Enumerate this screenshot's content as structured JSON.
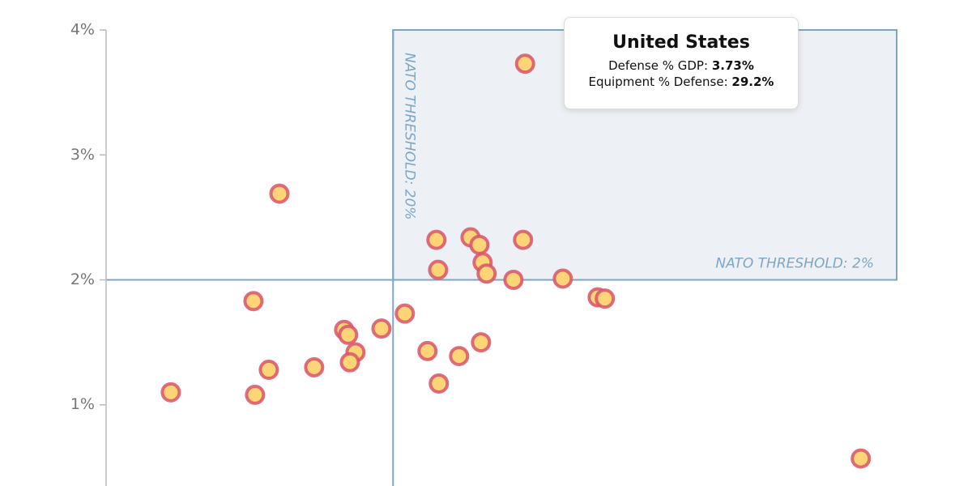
{
  "chart_data": {
    "type": "scatter",
    "x": [
      29.2,
      12.08,
      23.02,
      25.4,
      26.02,
      26.24,
      26.52,
      29.06,
      23.14,
      28.39,
      31.83,
      34.26,
      34.76,
      10.27,
      20.82,
      19.19,
      16.59,
      16.87,
      17.38,
      16.99,
      22.4,
      24.6,
      26.13,
      23.19,
      14.5,
      11.34,
      10.38,
      4.51,
      52.6
    ],
    "values": [
      3.73,
      2.69,
      2.32,
      2.34,
      2.28,
      2.14,
      2.05,
      2.32,
      2.08,
      2.0,
      2.01,
      1.86,
      1.85,
      1.83,
      1.73,
      1.61,
      1.6,
      1.56,
      1.42,
      1.34,
      1.43,
      1.39,
      1.5,
      1.17,
      1.3,
      1.28,
      1.08,
      1.1,
      0.57
    ],
    "color": "#fdd476",
    "edge_color": "#d9536a",
    "xlim": [
      0,
      60.35
    ],
    "ylim": [
      0.35,
      4.24
    ],
    "yticks": [
      {
        "value": 1,
        "label": "1%"
      },
      {
        "value": 2,
        "label": "2%"
      },
      {
        "value": 3,
        "label": "3%"
      },
      {
        "value": 4,
        "label": "4%"
      }
    ],
    "thresholds": {
      "x": 20,
      "y": 2,
      "x_label": "NATO THRESHOLD: 20%",
      "y_label": "NATO THRESHOLD: 2%",
      "x_end": 55.1,
      "y_end": 4
    },
    "tooltip": {
      "title": "United States",
      "rows": [
        {
          "label": "Defense % GDP:",
          "value": "3.73%"
        },
        {
          "label": "Equipment % Defense:",
          "value": "29.2%"
        }
      ]
    }
  }
}
